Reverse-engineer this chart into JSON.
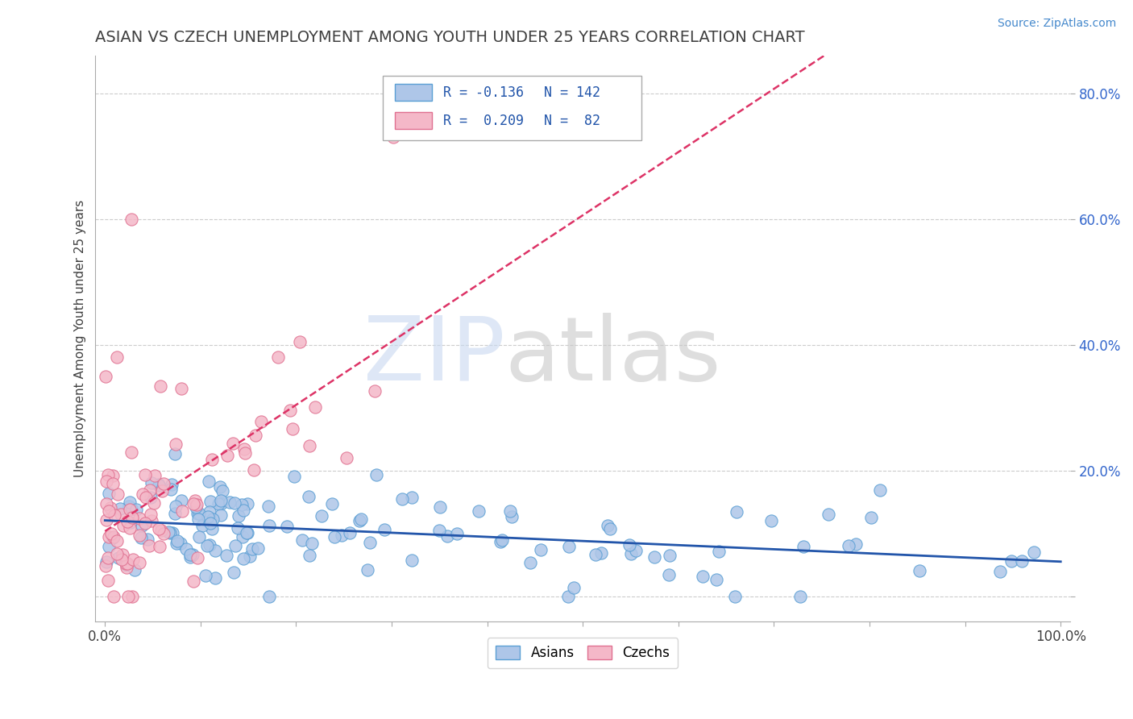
{
  "title": "ASIAN VS CZECH UNEMPLOYMENT AMONG YOUTH UNDER 25 YEARS CORRELATION CHART",
  "source": "Source: ZipAtlas.com",
  "ylabel": "Unemployment Among Youth under 25 years",
  "xlim": [
    -0.01,
    1.01
  ],
  "ylim": [
    -0.04,
    0.86
  ],
  "xticks": [
    0.0,
    0.1,
    0.2,
    0.3,
    0.4,
    0.5,
    0.6,
    0.7,
    0.8,
    0.9,
    1.0
  ],
  "xticklabels": [
    "0.0%",
    "",
    "",
    "",
    "",
    "",
    "",
    "",
    "",
    "",
    "100.0%"
  ],
  "yticks": [
    0.0,
    0.2,
    0.4,
    0.6,
    0.8
  ],
  "yticklabels": [
    "",
    "20.0%",
    "40.0%",
    "60.0%",
    "80.0%"
  ],
  "asian_R": -0.136,
  "asian_N": 142,
  "czech_R": 0.209,
  "czech_N": 82,
  "asian_color": "#aec6e8",
  "asian_edge": "#5a9fd4",
  "czech_color": "#f4b8c8",
  "czech_edge": "#e07090",
  "trendline_asian_color": "#2255aa",
  "trendline_czech_color": "#dd3366",
  "watermark_ZIP_color": "#c8d8f0",
  "watermark_atlas_color": "#c8c8c8",
  "background_color": "#ffffff",
  "grid_color": "#cccccc",
  "title_color": "#404040",
  "legend_R_color": "#2255aa",
  "legend_border_color": "#cccccc"
}
